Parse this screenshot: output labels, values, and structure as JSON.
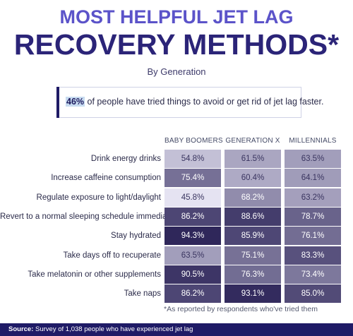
{
  "header": {
    "title_line1": "MOST HELPFUL JET LAG",
    "title_line2": "RECOVERY METHODS*",
    "subtitle": "By Generation"
  },
  "stat": {
    "percent": "46%",
    "text": "of people have tried things to avoid or get rid of jet lag faster."
  },
  "chart_data": {
    "type": "heatmap",
    "columns": [
      "BABY BOOMERS",
      "GENERATION X",
      "MILLENNIALS"
    ],
    "rows": [
      {
        "label": "Drink energy drinks",
        "values": [
          54.8,
          61.5,
          63.5
        ],
        "display": [
          "54.8%",
          "61.5%",
          "63.5%"
        ]
      },
      {
        "label": "Increase caffeine consumption",
        "values": [
          75.4,
          60.4,
          64.1
        ],
        "display": [
          "75.4%",
          "60.4%",
          "64.1%"
        ]
      },
      {
        "label": "Regulate exposure to light/daylight",
        "values": [
          45.8,
          68.2,
          63.2
        ],
        "display": [
          "45.8%",
          "68.2%",
          "63.2%"
        ]
      },
      {
        "label": "Revert to a normal sleeping schedule immediately",
        "values": [
          86.2,
          88.6,
          78.7
        ],
        "display": [
          "86.2%",
          "88.6%",
          "78.7%"
        ]
      },
      {
        "label": "Stay hydrated",
        "values": [
          94.3,
          85.9,
          76.1
        ],
        "display": [
          "94.3%",
          "85.9%",
          "76.1%"
        ]
      },
      {
        "label": "Take days off to recuperate",
        "values": [
          63.5,
          75.1,
          83.3
        ],
        "display": [
          "63.5%",
          "75.1%",
          "83.3%"
        ]
      },
      {
        "label": "Take melatonin or other supplements",
        "values": [
          90.5,
          76.3,
          73.4
        ],
        "display": [
          "90.5%",
          "76.3%",
          "73.4%"
        ]
      },
      {
        "label": "Take naps",
        "values": [
          86.2,
          93.1,
          85.0
        ],
        "display": [
          "86.2%",
          "93.1%",
          "85.0%"
        ]
      }
    ],
    "color_low": "#e8e6f5",
    "color_high": "#2c2458"
  },
  "footnote": "*As reported by respondents who've tried them",
  "footer": {
    "source_label": "Source:",
    "source_text": "Survey of 1,038 people who have experienced jet lag"
  },
  "colors": {
    "title_light": "#5b53c9",
    "title_dark": "#2b2478",
    "footer_bg": "#1f1b66",
    "highlight": "#c7dbf0"
  }
}
